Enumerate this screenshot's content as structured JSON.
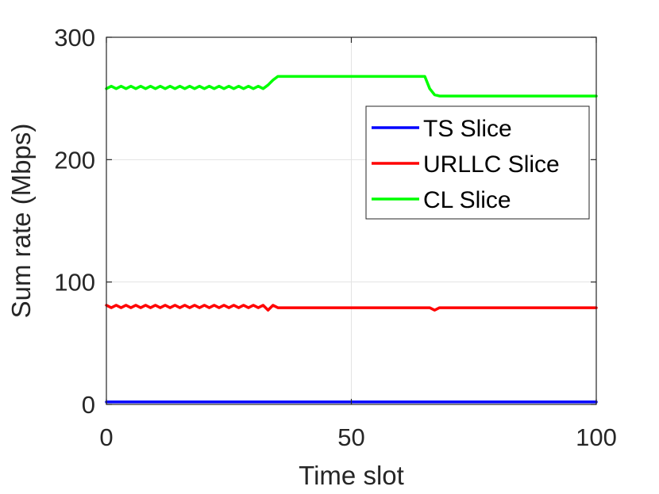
{
  "chart_data": {
    "type": "line",
    "title": "",
    "xlabel": "Time slot",
    "ylabel": "Sum rate (Mbps)",
    "xlim": [
      0,
      100
    ],
    "ylim": [
      0,
      300
    ],
    "xticks": [
      "0",
      "50",
      "100"
    ],
    "yticks": [
      "0",
      "100",
      "200",
      "300"
    ],
    "grid": true,
    "legend_position": "right",
    "series": [
      {
        "name": "TS Slice",
        "color": "#0000ff",
        "x": [
          0,
          100
        ],
        "values": [
          2,
          2
        ]
      },
      {
        "name": "URLLC Slice",
        "color": "#ff0000",
        "x": [
          0,
          1,
          2,
          3,
          4,
          5,
          6,
          7,
          8,
          9,
          10,
          11,
          12,
          13,
          14,
          15,
          16,
          17,
          18,
          19,
          20,
          21,
          22,
          23,
          24,
          25,
          26,
          27,
          28,
          29,
          30,
          31,
          32,
          33,
          34,
          35,
          36,
          40,
          50,
          60,
          65,
          66,
          67,
          68,
          70,
          80,
          90,
          100
        ],
        "values": [
          81,
          79,
          81,
          79,
          81,
          79,
          81,
          79,
          81,
          79,
          81,
          79,
          81,
          79,
          81,
          79,
          81,
          79,
          81,
          79,
          81,
          79,
          81,
          79,
          81,
          79,
          81,
          79,
          81,
          79,
          81,
          79,
          81,
          77,
          81,
          79,
          79,
          79,
          79,
          79,
          79,
          79,
          77,
          79,
          79,
          79,
          79,
          79
        ]
      },
      {
        "name": "CL Slice",
        "color": "#00ff00",
        "x": [
          0,
          1,
          2,
          3,
          4,
          5,
          6,
          7,
          8,
          9,
          10,
          11,
          12,
          13,
          14,
          15,
          16,
          17,
          18,
          19,
          20,
          21,
          22,
          23,
          24,
          25,
          26,
          27,
          28,
          29,
          30,
          31,
          32,
          33,
          34,
          35,
          36,
          40,
          50,
          60,
          65,
          66,
          67,
          68,
          70,
          80,
          90,
          100
        ],
        "values": [
          258,
          260,
          258,
          260,
          258,
          260,
          258,
          260,
          258,
          260,
          258,
          260,
          258,
          260,
          258,
          260,
          258,
          260,
          258,
          260,
          258,
          260,
          258,
          260,
          258,
          260,
          258,
          260,
          258,
          260,
          258,
          260,
          258,
          261,
          265,
          268,
          268,
          268,
          268,
          268,
          268,
          258,
          253,
          252,
          252,
          252,
          252,
          252
        ]
      }
    ]
  }
}
